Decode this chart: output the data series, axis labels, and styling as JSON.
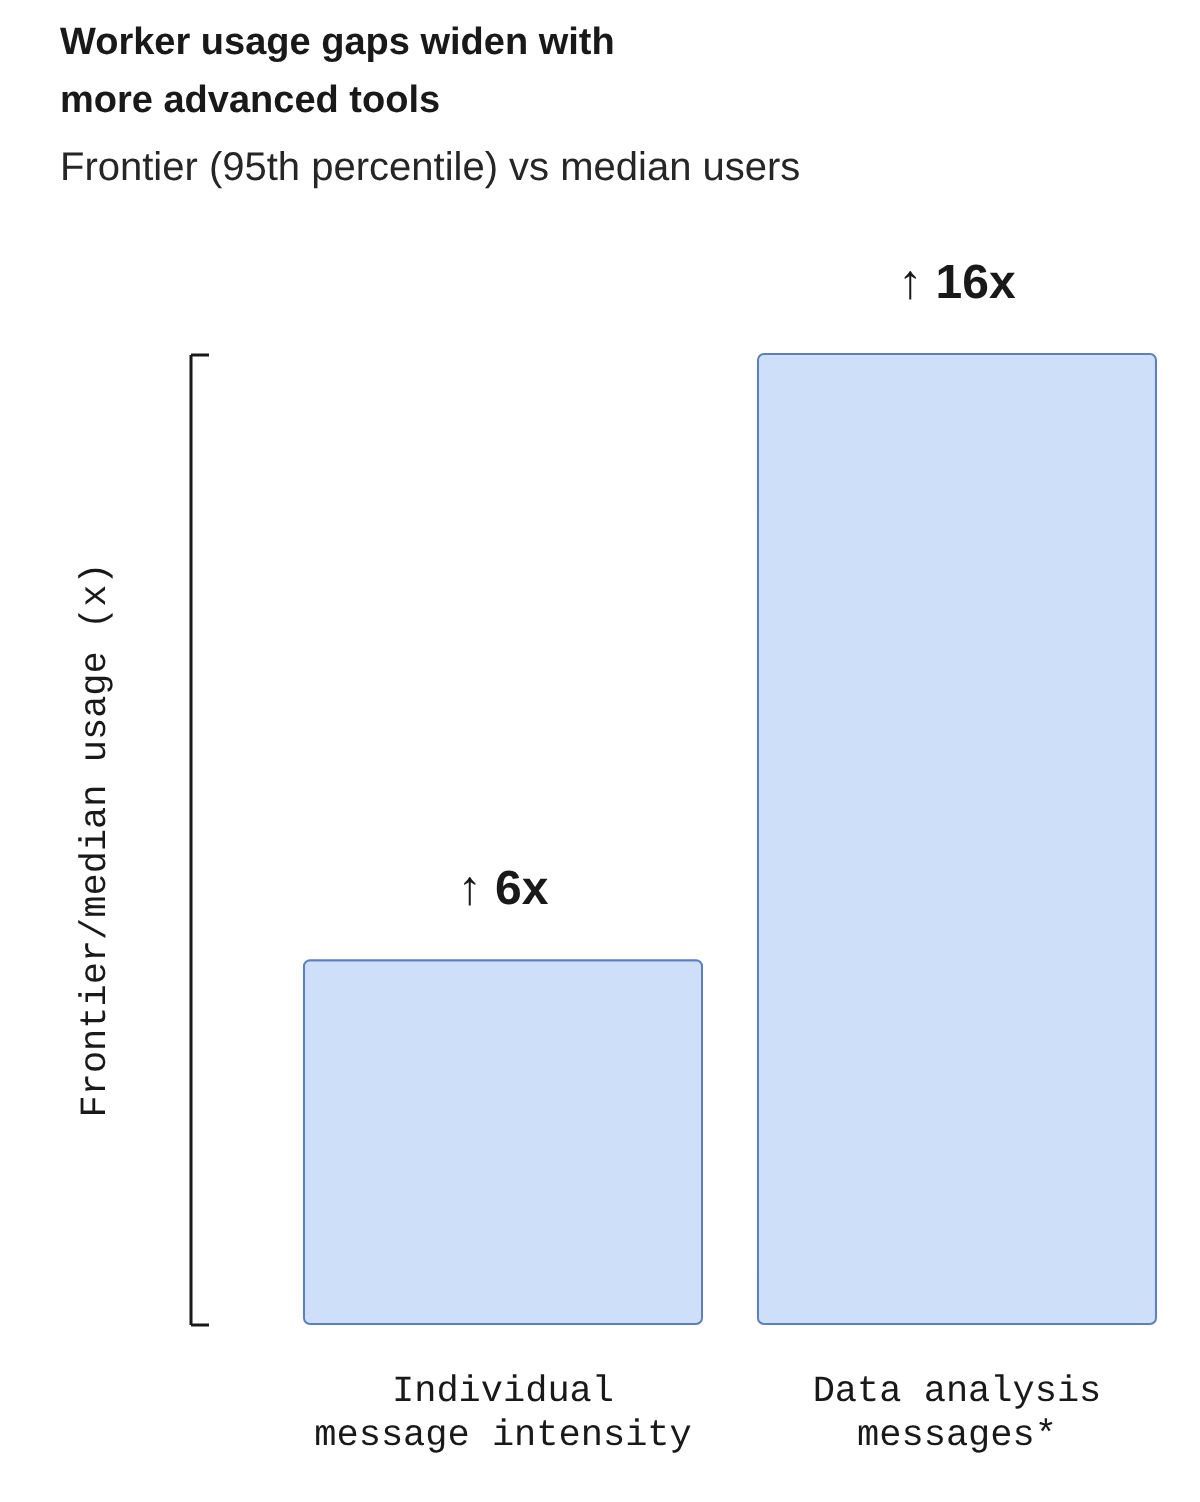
{
  "chart_data": {
    "type": "bar",
    "title": "Worker usage gaps widen with more advanced tools",
    "subtitle": "Frontier (95th percentile) vs median users",
    "ylabel": "Frontier/median usage (x)",
    "categories": [
      "Individual message intensity",
      "Data analysis messages*"
    ],
    "values": [
      6,
      16
    ],
    "value_labels": [
      "↑ 6x",
      "↑ 16x"
    ],
    "color": "#cddff9",
    "ylim": [
      0,
      16
    ],
    "tick_labels": "x"
  }
}
